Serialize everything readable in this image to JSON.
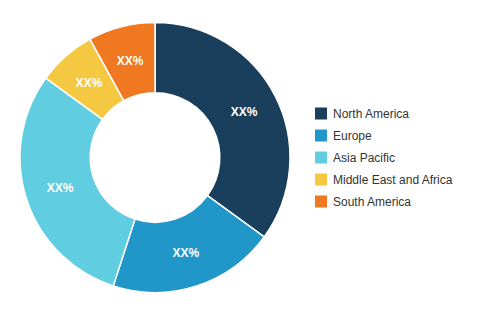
{
  "chart_data": {
    "type": "pie",
    "categories": [
      "North America",
      "Europe",
      "Asia Pacific",
      "Middle East and Africa",
      "South America"
    ],
    "values": [
      35,
      20,
      30,
      7,
      8
    ],
    "value_labels": [
      "XX%",
      "XX%",
      "XX%",
      "XX%",
      "XX%"
    ],
    "colors": [
      "#1a3f5c",
      "#2196c9",
      "#60cee0",
      "#f5c842",
      "#f07820"
    ],
    "data_labels": true,
    "legend": "right"
  }
}
